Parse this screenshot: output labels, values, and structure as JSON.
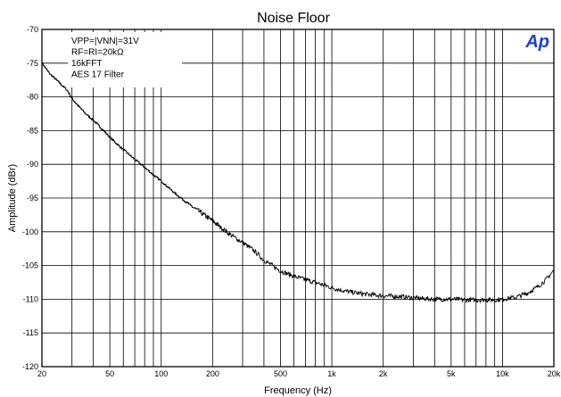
{
  "chart_data": {
    "type": "line",
    "title": "Noise Floor",
    "xlabel": "Frequency (Hz)",
    "ylabel": "Amplitude (dBr)",
    "x_scale": "log",
    "xlim": [
      20,
      20000
    ],
    "ylim": [
      -120,
      -70
    ],
    "grid": true,
    "x_ticks": [
      {
        "value": 20,
        "label": "20"
      },
      {
        "value": 50,
        "label": "50"
      },
      {
        "value": 100,
        "label": "100"
      },
      {
        "value": 200,
        "label": "200"
      },
      {
        "value": 500,
        "label": "500"
      },
      {
        "value": 1000,
        "label": "1k"
      },
      {
        "value": 2000,
        "label": "2k"
      },
      {
        "value": 5000,
        "label": "5k"
      },
      {
        "value": 10000,
        "label": "10k"
      },
      {
        "value": 20000,
        "label": "20k"
      }
    ],
    "y_ticks": [
      -70,
      -75,
      -80,
      -85,
      -90,
      -95,
      -100,
      -105,
      -110,
      -115,
      -120
    ],
    "annotations": [
      "VPP=|VNN|=31V",
      "RF=RI=20kΩ",
      "16kFFT",
      "AES 17 Filter"
    ],
    "logo_text": "Ap",
    "series": [
      {
        "color": "#000000",
        "x": [
          20,
          22,
          25,
          28,
          30,
          33,
          36,
          40,
          45,
          50,
          56,
          63,
          70,
          80,
          90,
          100,
          120,
          150,
          180,
          200,
          250,
          300,
          350,
          400,
          500,
          600,
          700,
          800,
          1000,
          1200,
          1500,
          2000,
          2500,
          3000,
          4000,
          5000,
          6000,
          7000,
          8000,
          9000,
          10000,
          12000,
          14000,
          16000,
          18000,
          20000
        ],
        "y": [
          -75,
          -76.5,
          -77.8,
          -79,
          -80.3,
          -81.5,
          -82.5,
          -83.5,
          -84.8,
          -86,
          -87.2,
          -88.3,
          -89.3,
          -90.5,
          -91.6,
          -92.5,
          -94.3,
          -96.2,
          -97.6,
          -98.4,
          -100.3,
          -101.6,
          -102.8,
          -104.2,
          -105.8,
          -106.6,
          -107.1,
          -107.5,
          -108.3,
          -108.8,
          -109.2,
          -109.5,
          -109.6,
          -109.8,
          -110.0,
          -110.0,
          -110.1,
          -110.1,
          -110.1,
          -110.1,
          -110.0,
          -109.7,
          -109.1,
          -108.2,
          -107.1,
          -105.7
        ]
      }
    ]
  }
}
